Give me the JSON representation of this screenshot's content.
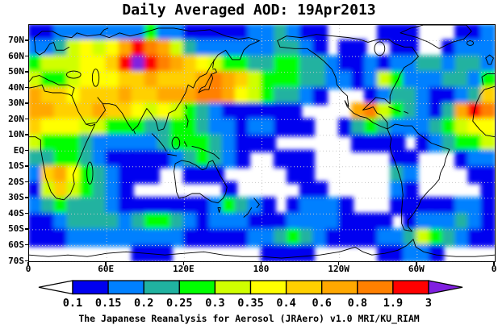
{
  "title": "Daily Averaged AOD: 19Apr2013",
  "caption": "The Japanese Reanalysis for Aerosol (JRAero) v1.0 MRI/KU_RIAM",
  "colors": {
    "background": "#ffffff",
    "frame": "#000000",
    "coastline": "#000000",
    "grid_dots": "#c9c9c9"
  },
  "chart_data": {
    "type": "heatmap",
    "title": "Daily Averaged AOD: 19Apr2013",
    "variable": "Daily averaged Aerosol Optical Depth (AOD)",
    "date": "19Apr2013",
    "projection": "equirectangular world map; longitude 0E to 360E left-to-right (180 at center), latitude 75N (top) to 75S (bottom)",
    "grid_on": true,
    "lat_ticks": [
      "70N",
      "60N",
      "50N",
      "40N",
      "30N",
      "20N",
      "10N",
      "EQ",
      "10S",
      "20S",
      "30S",
      "40S",
      "50S",
      "60S",
      "70S"
    ],
    "lon_ticks": [
      "0",
      "60E",
      "120E",
      "180",
      "120W",
      "60W",
      "0"
    ],
    "colorbar": {
      "tick_labels": [
        "0.1",
        "0.15",
        "0.2",
        "0.25",
        "0.3",
        "0.35",
        "0.4",
        "0.6",
        "0.8",
        "1.9",
        "3"
      ],
      "box_colors": [
        "#0000f0",
        "#0080ff",
        "#20b2a0",
        "#00ff00",
        "#d0ff00",
        "#ffff00",
        "#ffd000",
        "#ffa800",
        "#ff8000",
        "#ff0000"
      ],
      "under_color": "#ffffff",
      "over_color": "#8020e0",
      "position": "bottom"
    },
    "grid_info": "AOD field sampled on 36 columns (10 deg lon each, from 0E eastward) x 15 rows (10 deg lat each, from 75N down to 75S). Each character is an AOD bin code.",
    "grid_codes": {
      "0": "< 0.1 (white/clear)",
      "1": "0.1 - 0.15",
      "2": "0.15 - 0.2",
      "3": "0.2 - 0.25",
      "4": "0.25 - 0.3",
      "5": "0.3 - 0.35",
      "6": "0.35 - 0.4",
      "7": "0.4 - 0.6",
      "8": "0.6 - 0.8",
      "9": "0.8 - 1.9",
      "A": "1.9 - 3",
      "B": "> 3 (purple)"
    },
    "grid": [
      "112222222422111112232110000111000112",
      "22356568A985322222233210110011001222",
      "4555667ABA98765443344332112122332332",
      "544566677877789875444332212542223324",
      "877677787788899865433210001233211237",
      "8877787765654321111110000895432138A9",
      "766655444334432212211100134322234566",
      "544432222234443211100000011110123445",
      "334432111112343210011100000011000122",
      "278643211100111000001100000032000011",
      "157543210000000100000110000021000001",
      "234333211111112432101222100011111221",
      "112333323443212221112222111101222321",
      "111222222222111112234321111223543211",
      "000000001110000000111100000112210000"
    ],
    "notable_features": [
      "Red/purple extreme AOD hotspot over south-central Siberia (~85-95E, 50-58N)",
      "Orange plume East Asia / Japan streaming east across the North Pacific",
      "Saharan dust: orange over North/West Africa with red core off Senegal coast",
      "Orange biomass-burning plume over southern Mexico / Central America",
      "Orange plume over southeastern Africa (Mozambique region) trailing into Indian Ocean",
      "Blue/cyan/green aerosol bands along the Southern Ocean storm track"
    ]
  }
}
